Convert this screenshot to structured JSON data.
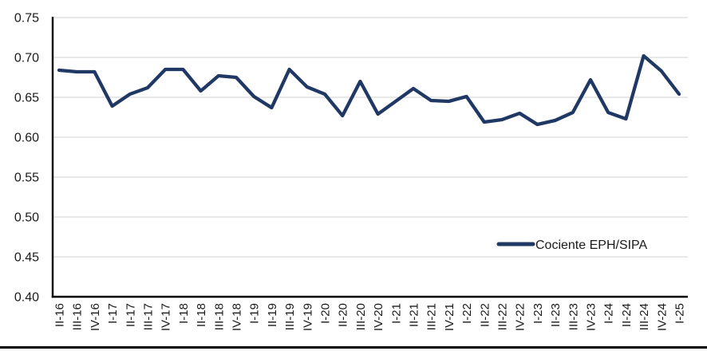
{
  "chart_data": {
    "type": "line",
    "title": "",
    "xlabel": "",
    "ylabel": "",
    "categories": [
      "II-16",
      "III-16",
      "IV-16",
      "I-17",
      "II-17",
      "III-17",
      "IV-17",
      "I-18",
      "II-18",
      "III-18",
      "IV-18",
      "I-19",
      "II-19",
      "III-19",
      "IV-19",
      "I-20",
      "II-20",
      "III-20",
      "IV-20",
      "I-21",
      "II-21",
      "III-21",
      "IV-21",
      "I-22",
      "II-22",
      "III-22",
      "IV-22",
      "I-23",
      "II-23",
      "III-23",
      "IV-23",
      "I-24",
      "II-24",
      "III-24",
      "IV-24",
      "I-25"
    ],
    "series": [
      {
        "name": "Cociente EPH/SIPA",
        "color": "#1f3864",
        "values": [
          0.684,
          0.682,
          0.682,
          0.639,
          0.654,
          0.662,
          0.685,
          0.685,
          0.658,
          0.677,
          0.675,
          0.651,
          0.637,
          0.685,
          0.663,
          0.654,
          0.627,
          0.67,
          0.629,
          0.645,
          0.661,
          0.646,
          0.645,
          0.651,
          0.619,
          0.622,
          0.63,
          0.616,
          0.621,
          0.631,
          0.672,
          0.631,
          0.623,
          0.702,
          0.683,
          0.654
        ]
      }
    ],
    "ylim": [
      0.4,
      0.75
    ],
    "ytick_step": 0.05,
    "ytick_labels": [
      "0.75",
      "0.70",
      "0.65",
      "0.60",
      "0.55",
      "0.50",
      "0.45",
      "0.40"
    ],
    "grid": "horizontal",
    "gridline_color": "#d9d9d9",
    "axis_color": "#000000",
    "text_color": "#1a1a1a",
    "legend_position": "inside-right-lower",
    "legend_label": "Cociente EPH/SIPA"
  }
}
